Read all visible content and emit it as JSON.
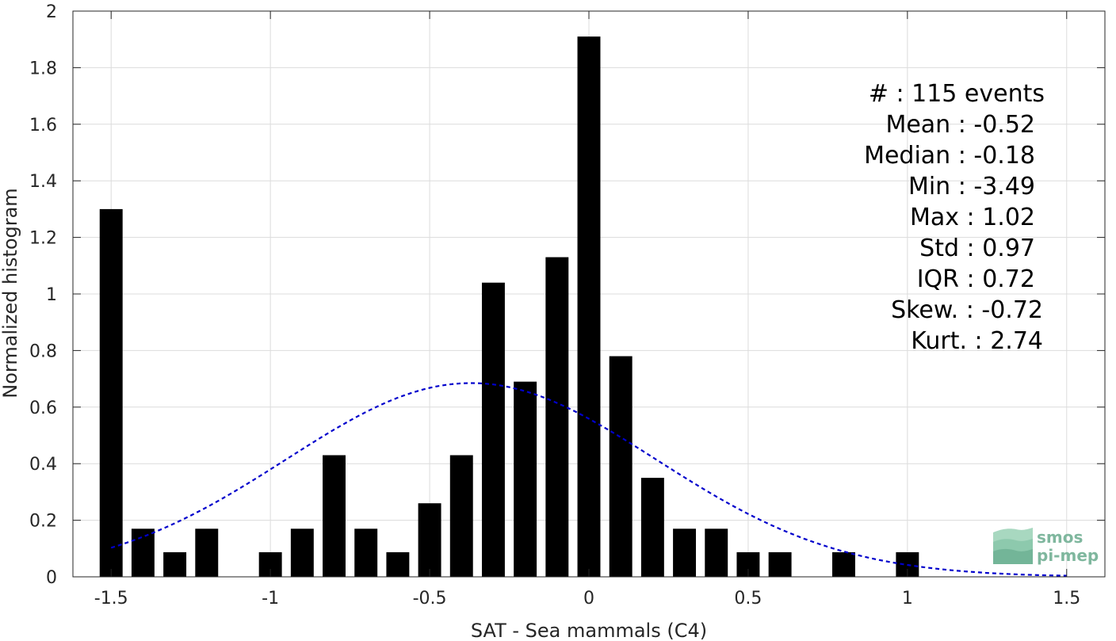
{
  "chart_data": {
    "type": "bar",
    "xlabel": "SAT - Sea mammals (C4)",
    "ylabel": "Normalized histogram",
    "xlim": [
      -1.62,
      1.62
    ],
    "ylim": [
      0,
      2
    ],
    "xticks": [
      -1.5,
      -1,
      -0.5,
      0,
      0.5,
      1,
      1.5
    ],
    "xtick_labels": [
      "-1.5",
      "-1",
      "-0.5",
      "0",
      "0.5",
      "1",
      "1.5"
    ],
    "yticks": [
      0,
      0.2,
      0.4,
      0.6,
      0.8,
      1,
      1.2,
      1.4,
      1.6,
      1.8,
      2
    ],
    "ytick_labels": [
      "0",
      "0.2",
      "0.4",
      "0.6",
      "0.8",
      "1",
      "1.2",
      "1.4",
      "1.6",
      "1.8",
      "2"
    ],
    "grid": true,
    "bar_width": 0.072,
    "bins": [
      -1.5,
      -1.4,
      -1.3,
      -1.2,
      -1.1,
      -1.0,
      -0.9,
      -0.8,
      -0.7,
      -0.6,
      -0.5,
      -0.4,
      -0.3,
      -0.2,
      -0.1,
      0.0,
      0.1,
      0.2,
      0.3,
      0.4,
      0.5,
      0.6,
      0.7,
      0.8,
      0.9,
      1.0
    ],
    "values": [
      1.3,
      0.17,
      0.087,
      0.17,
      0,
      0.087,
      0.17,
      0.43,
      0.17,
      0.087,
      0.26,
      0.43,
      1.04,
      0.69,
      1.13,
      1.91,
      0.78,
      0.35,
      0.17,
      0.17,
      0.087,
      0.087,
      0,
      0.087,
      0,
      0.087
    ],
    "fit_curve": {
      "style": "dashed",
      "color": "#0000cc",
      "mean": -0.37,
      "std": 0.58,
      "amplitude": 0.685,
      "x_range": [
        -1.5,
        1.5
      ]
    },
    "bar_color": "#000000",
    "stats": [
      {
        "label": "#  : 115 events"
      },
      {
        "label": "Mean : -0.52"
      },
      {
        "label": "Median : -0.18"
      },
      {
        "label": "Min : -3.49"
      },
      {
        "label": "Max : 1.02"
      },
      {
        "label": "Std : 0.97"
      },
      {
        "label": "IQR : 0.72"
      },
      {
        "label": "Skew. : -0.72"
      },
      {
        "label": "Kurt. : 2.74"
      }
    ]
  },
  "logo": {
    "line1": "smos",
    "line2": "pi-mep",
    "color": "#7fb79e"
  }
}
